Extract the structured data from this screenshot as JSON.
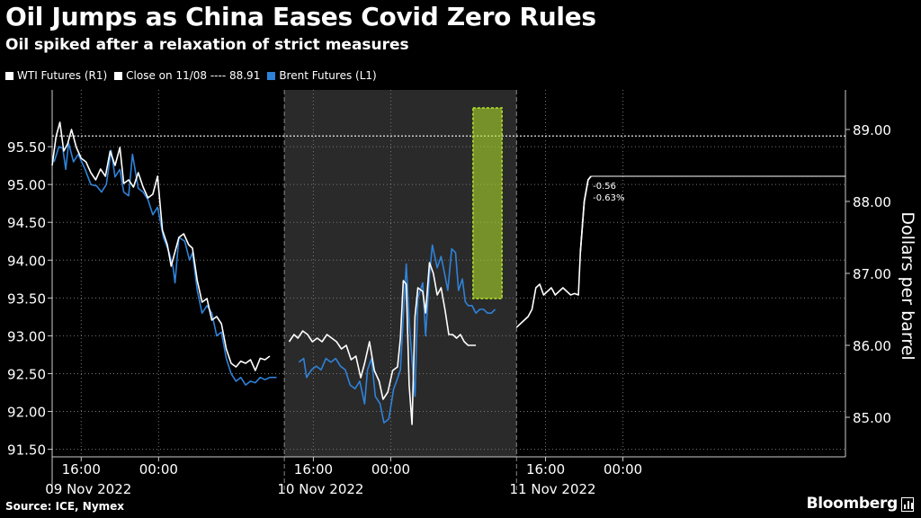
{
  "title": "Oil Jumps as China Eases Covid Zero Rules",
  "subtitle": "Oil spiked after a relaxation of strict measures",
  "legend": {
    "wti": "WTI Futures (R1)",
    "close": "Close on 11/08 ---- 88.91",
    "brent": "Brent Futures (L1)"
  },
  "footer": {
    "source": "Source: ICE, Nymex",
    "brand": "Bloomberg"
  },
  "colors": {
    "background": "#000000",
    "wti": "#ffffff",
    "brent": "#2f82d8",
    "highlight": "#b6e62a",
    "grid": "#777777",
    "shade": "#2a2a2a"
  },
  "chart_data": {
    "type": "line",
    "x_unit": "hours since 09 Nov 2022 00:00 (approx. time axis)",
    "xlim": [
      -11,
      71
    ],
    "ylim_left": [
      91.4,
      96.25
    ],
    "ylim_right": [
      84.45,
      89.55
    ],
    "ylabel_right": "Dollars per barrel",
    "left_ticks": [
      "95.50",
      "95.00",
      "94.50",
      "94.00",
      "93.50",
      "93.00",
      "92.50",
      "92.00",
      "91.50"
    ],
    "left_tick_values": [
      95.5,
      95.0,
      94.5,
      94.0,
      93.5,
      93.0,
      92.5,
      92.0,
      91.5
    ],
    "right_ticks": [
      "89.00",
      "88.00",
      "87.00",
      "86.00",
      "85.00"
    ],
    "right_tick_values": [
      89.0,
      88.0,
      87.0,
      86.0,
      85.0
    ],
    "x_ticks": [
      {
        "h": -8,
        "label": "16:00",
        "day": ""
      },
      {
        "h": 0,
        "label": "00:00",
        "day": ""
      },
      {
        "h": 16,
        "label": "16:00",
        "day": ""
      },
      {
        "h": 24,
        "label": "00:00",
        "day": ""
      },
      {
        "h": 40,
        "label": "16:00",
        "day": ""
      },
      {
        "h": 48,
        "label": "00:00",
        "day": ""
      }
    ],
    "day_labels": [
      {
        "h": -8,
        "label": "09 Nov 2022"
      },
      {
        "h": 16,
        "label": "10 Nov 2022"
      },
      {
        "h": 40,
        "label": "11 Nov 2022"
      }
    ],
    "day_separators": [
      13,
      37
    ],
    "shaded_range": [
      13,
      37
    ],
    "close_line": {
      "label": "88.91",
      "value": 88.91,
      "axis": "right"
    },
    "annotation": {
      "line1": "-0.56",
      "line2": "-0.63%",
      "last_value": 88.35
    },
    "highlight_range": {
      "x": [
        32.5,
        35.5
      ],
      "y": [
        86.65,
        89.3
      ]
    },
    "series": [
      {
        "name": "Brent Futures (L1)",
        "axis": "left",
        "color": "#2f82d8",
        "segments": [
          [
            [
              -10.8,
              95.3
            ],
            [
              -10.3,
              95.5
            ],
            [
              -9.9,
              95.48
            ],
            [
              -9.6,
              95.2
            ],
            [
              -9.3,
              95.55
            ],
            [
              -8.8,
              95.3
            ],
            [
              -8.3,
              95.4
            ],
            [
              -7.6,
              95.2
            ],
            [
              -7.0,
              95.0
            ],
            [
              -6.4,
              94.98
            ],
            [
              -5.9,
              94.9
            ],
            [
              -5.4,
              95.0
            ],
            [
              -4.9,
              95.45
            ],
            [
              -4.5,
              95.1
            ],
            [
              -4.0,
              95.2
            ],
            [
              -3.6,
              94.9
            ],
            [
              -3.1,
              94.85
            ],
            [
              -2.7,
              95.4
            ],
            [
              -2.1,
              94.95
            ],
            [
              -1.6,
              94.9
            ],
            [
              -1.1,
              94.8
            ],
            [
              -0.6,
              94.6
            ],
            [
              -0.1,
              94.7
            ],
            [
              0.5,
              94.3
            ],
            [
              1.1,
              94.1
            ],
            [
              1.5,
              93.9
            ],
            [
              1.7,
              93.7
            ],
            [
              2.1,
              94.3
            ],
            [
              2.7,
              94.25
            ],
            [
              3.2,
              94.0
            ],
            [
              3.5,
              94.1
            ],
            [
              4.0,
              93.6
            ],
            [
              4.5,
              93.3
            ],
            [
              5.0,
              93.4
            ],
            [
              5.5,
              93.3
            ],
            [
              6.0,
              93.0
            ],
            [
              6.5,
              93.05
            ],
            [
              7.0,
              92.7
            ],
            [
              7.5,
              92.5
            ],
            [
              8.0,
              92.4
            ],
            [
              8.5,
              92.45
            ],
            [
              9.0,
              92.35
            ],
            [
              9.5,
              92.4
            ],
            [
              10.0,
              92.38
            ],
            [
              10.5,
              92.45
            ],
            [
              11.0,
              92.42
            ],
            [
              11.5,
              92.45
            ],
            [
              12.2,
              92.45
            ]
          ],
          [
            [
              14.5,
              92.65
            ],
            [
              15.0,
              92.7
            ],
            [
              15.3,
              92.45
            ],
            [
              15.8,
              92.55
            ],
            [
              16.3,
              92.6
            ],
            [
              16.8,
              92.55
            ],
            [
              17.3,
              92.7
            ],
            [
              17.8,
              92.65
            ],
            [
              18.3,
              92.7
            ],
            [
              18.8,
              92.6
            ],
            [
              19.3,
              92.55
            ],
            [
              19.8,
              92.35
            ],
            [
              20.3,
              92.3
            ],
            [
              20.8,
              92.4
            ],
            [
              21.3,
              92.1
            ],
            [
              21.6,
              92.55
            ],
            [
              22.0,
              92.7
            ],
            [
              22.4,
              92.2
            ],
            [
              22.9,
              92.1
            ],
            [
              23.3,
              91.85
            ],
            [
              23.8,
              91.9
            ],
            [
              24.3,
              92.3
            ],
            [
              24.6,
              92.4
            ],
            [
              25.0,
              92.55
            ],
            [
              25.4,
              93.5
            ],
            [
              25.6,
              93.95
            ],
            [
              25.9,
              93.2
            ],
            [
              26.3,
              92.5
            ],
            [
              26.5,
              92.2
            ],
            [
              26.8,
              93.5
            ],
            [
              27.3,
              93.7
            ],
            [
              27.6,
              93.0
            ],
            [
              28.0,
              93.8
            ],
            [
              28.3,
              94.2
            ],
            [
              28.8,
              93.9
            ],
            [
              29.2,
              94.05
            ],
            [
              29.6,
              93.8
            ],
            [
              29.9,
              93.6
            ],
            [
              30.3,
              94.15
            ],
            [
              30.7,
              94.1
            ],
            [
              31.0,
              93.6
            ],
            [
              31.4,
              93.75
            ],
            [
              31.7,
              93.45
            ],
            [
              32.0,
              93.4
            ],
            [
              32.4,
              93.4
            ],
            [
              32.8,
              93.3
            ],
            [
              33.2,
              93.35
            ],
            [
              33.6,
              93.35
            ],
            [
              34.0,
              93.3
            ],
            [
              34.4,
              93.3
            ],
            [
              34.8,
              93.35
            ]
          ]
        ]
      },
      {
        "name": "WTI Futures (R1)",
        "axis": "right",
        "color": "#ffffff",
        "segments": [
          [
            [
              -11.0,
              88.5
            ],
            [
              -10.6,
              88.9
            ],
            [
              -10.2,
              89.1
            ],
            [
              -9.8,
              88.7
            ],
            [
              -9.4,
              88.8
            ],
            [
              -9.0,
              89.0
            ],
            [
              -8.5,
              88.75
            ],
            [
              -8.0,
              88.6
            ],
            [
              -7.5,
              88.55
            ],
            [
              -7.0,
              88.4
            ],
            [
              -6.5,
              88.3
            ],
            [
              -6.0,
              88.45
            ],
            [
              -5.5,
              88.35
            ],
            [
              -5.0,
              88.7
            ],
            [
              -4.5,
              88.5
            ],
            [
              -4.0,
              88.75
            ],
            [
              -3.6,
              88.25
            ],
            [
              -3.1,
              88.3
            ],
            [
              -2.6,
              88.2
            ],
            [
              -2.1,
              88.4
            ],
            [
              -1.6,
              88.2
            ],
            [
              -1.1,
              88.05
            ],
            [
              -0.6,
              88.1
            ],
            [
              -0.1,
              88.35
            ],
            [
              0.4,
              87.6
            ],
            [
              0.9,
              87.4
            ],
            [
              1.3,
              87.1
            ],
            [
              1.7,
              87.3
            ],
            [
              2.1,
              87.5
            ],
            [
              2.6,
              87.55
            ],
            [
              3.1,
              87.4
            ],
            [
              3.5,
              87.35
            ],
            [
              4.0,
              86.9
            ],
            [
              4.5,
              86.6
            ],
            [
              5.0,
              86.65
            ],
            [
              5.5,
              86.35
            ],
            [
              6.0,
              86.4
            ],
            [
              6.5,
              86.3
            ],
            [
              7.0,
              85.95
            ],
            [
              7.5,
              85.75
            ],
            [
              8.0,
              85.7
            ],
            [
              8.5,
              85.78
            ],
            [
              9.0,
              85.75
            ],
            [
              9.5,
              85.8
            ],
            [
              10.0,
              85.65
            ],
            [
              10.5,
              85.82
            ],
            [
              11.0,
              85.8
            ],
            [
              11.5,
              85.85
            ]
          ],
          [
            [
              13.5,
              86.05
            ],
            [
              14.0,
              86.15
            ],
            [
              14.4,
              86.1
            ],
            [
              14.9,
              86.2
            ],
            [
              15.4,
              86.15
            ],
            [
              15.9,
              86.05
            ],
            [
              16.4,
              86.1
            ],
            [
              16.9,
              86.05
            ],
            [
              17.4,
              86.15
            ],
            [
              17.9,
              86.1
            ],
            [
              18.4,
              86.05
            ],
            [
              18.9,
              85.95
            ],
            [
              19.4,
              86.0
            ],
            [
              19.9,
              85.8
            ],
            [
              20.4,
              85.85
            ],
            [
              20.9,
              85.55
            ],
            [
              21.3,
              85.75
            ],
            [
              21.8,
              86.05
            ],
            [
              22.3,
              85.65
            ],
            [
              22.8,
              85.5
            ],
            [
              23.2,
              85.25
            ],
            [
              23.7,
              85.35
            ],
            [
              24.2,
              85.65
            ],
            [
              24.7,
              85.7
            ],
            [
              25.0,
              86.1
            ],
            [
              25.3,
              86.9
            ],
            [
              25.6,
              86.85
            ],
            [
              25.9,
              85.45
            ],
            [
              26.2,
              84.9
            ],
            [
              26.5,
              86.4
            ],
            [
              26.8,
              86.8
            ],
            [
              27.3,
              86.75
            ],
            [
              27.6,
              86.45
            ],
            [
              28.0,
              87.15
            ],
            [
              28.4,
              87.0
            ],
            [
              28.8,
              86.7
            ],
            [
              29.2,
              86.8
            ],
            [
              29.6,
              86.5
            ],
            [
              30.0,
              86.15
            ],
            [
              30.4,
              86.15
            ],
            [
              30.8,
              86.1
            ],
            [
              31.2,
              86.15
            ],
            [
              31.6,
              86.05
            ],
            [
              32.0,
              86.0
            ],
            [
              32.4,
              86.0
            ],
            [
              32.8,
              86.0
            ]
          ],
          [
            [
              37.0,
              86.25
            ],
            [
              37.4,
              86.3
            ],
            [
              37.8,
              86.35
            ],
            [
              38.2,
              86.4
            ],
            [
              38.6,
              86.5
            ],
            [
              39.0,
              86.8
            ],
            [
              39.4,
              86.85
            ],
            [
              39.8,
              86.7
            ],
            [
              40.2,
              86.75
            ],
            [
              40.6,
              86.8
            ],
            [
              41.0,
              86.7
            ],
            [
              41.4,
              86.75
            ],
            [
              41.8,
              86.8
            ],
            [
              42.2,
              86.75
            ],
            [
              42.6,
              86.7
            ],
            [
              43.0,
              86.72
            ],
            [
              43.4,
              86.7
            ],
            [
              43.6,
              87.3
            ],
            [
              44.0,
              88.0
            ],
            [
              44.4,
              88.3
            ],
            [
              44.7,
              88.35
            ]
          ]
        ]
      }
    ]
  }
}
